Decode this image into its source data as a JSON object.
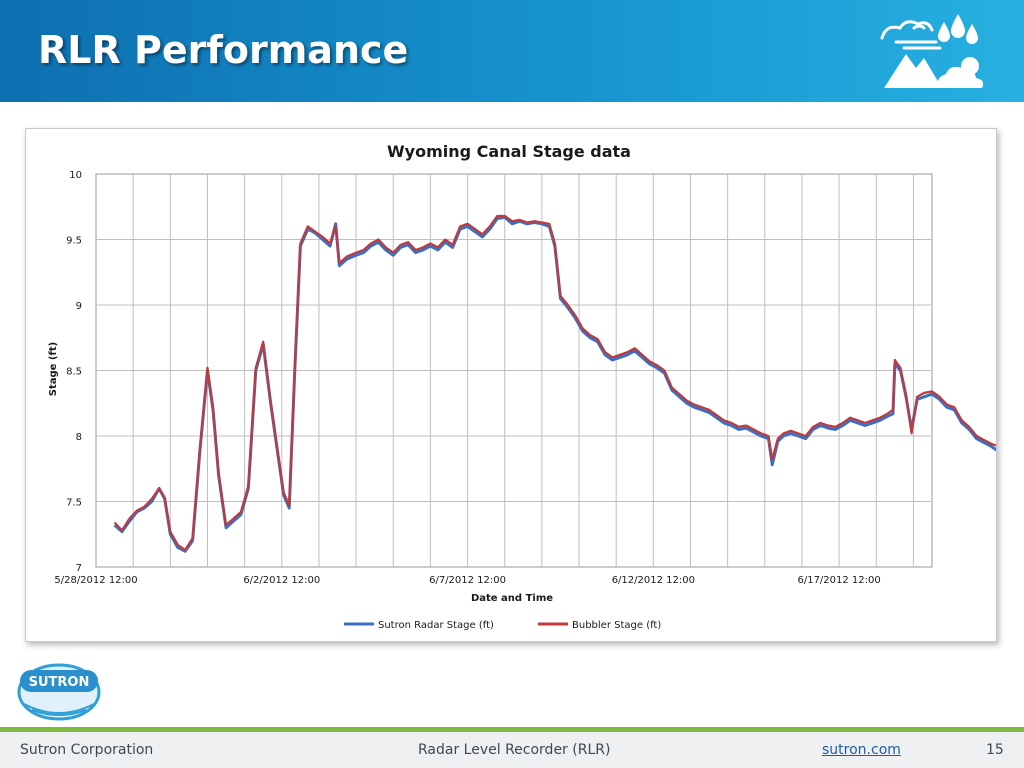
{
  "slide": {
    "title": "RLR Performance",
    "slide_number": "15"
  },
  "footer": {
    "company": "Sutron Corporation",
    "subject": "Radar Level Recorder (RLR)",
    "website": "sutron.com"
  },
  "logo": {
    "text": "SUTRON"
  },
  "icons": {
    "header": "weather-icon",
    "logo": "sutron-globe-logo"
  },
  "colors": {
    "header_start": "#0e6fb0",
    "header_end": "#27b0e0",
    "accent_green": "#7fba3f",
    "series_radar": "#3b6fc4",
    "series_bubbler": "#c0393b"
  },
  "chart_data": {
    "type": "line",
    "title": "Wyoming Canal Stage data",
    "xlabel": "Date and Time",
    "ylabel": "Stage (ft)",
    "ylim": [
      7,
      10
    ],
    "yticks": [
      "7",
      "7.5",
      "8",
      "8.5",
      "9",
      "9.5",
      "10"
    ],
    "xticks": [
      "5/28/2012 12:00",
      "6/2/2012 12:00",
      "6/7/2012 12:00",
      "6/12/2012 12:00",
      "6/17/2012 12:00"
    ],
    "xlim_days": [
      0,
      22.5
    ],
    "grid": true,
    "legend_position": "bottom",
    "series": [
      {
        "name": "Sutron Radar Stage (ft)",
        "color": "#3b6fc4",
        "points": [
          [
            0.5,
            7.32
          ],
          [
            0.7,
            7.27
          ],
          [
            0.9,
            7.35
          ],
          [
            1.1,
            7.42
          ],
          [
            1.3,
            7.45
          ],
          [
            1.5,
            7.5
          ],
          [
            1.7,
            7.6
          ],
          [
            1.85,
            7.52
          ],
          [
            2.0,
            7.25
          ],
          [
            2.2,
            7.15
          ],
          [
            2.4,
            7.12
          ],
          [
            2.6,
            7.2
          ],
          [
            2.8,
            7.9
          ],
          [
            3.0,
            8.5
          ],
          [
            3.15,
            8.2
          ],
          [
            3.3,
            7.7
          ],
          [
            3.5,
            7.3
          ],
          [
            3.7,
            7.35
          ],
          [
            3.9,
            7.4
          ],
          [
            4.1,
            7.6
          ],
          [
            4.3,
            8.5
          ],
          [
            4.5,
            8.7
          ],
          [
            4.7,
            8.25
          ],
          [
            4.9,
            7.85
          ],
          [
            5.05,
            7.55
          ],
          [
            5.2,
            7.45
          ],
          [
            5.35,
            8.5
          ],
          [
            5.5,
            9.45
          ],
          [
            5.7,
            9.58
          ],
          [
            5.9,
            9.55
          ],
          [
            6.1,
            9.5
          ],
          [
            6.3,
            9.45
          ],
          [
            6.45,
            9.62
          ],
          [
            6.55,
            9.3
          ],
          [
            6.75,
            9.35
          ],
          [
            7.0,
            9.38
          ],
          [
            7.2,
            9.4
          ],
          [
            7.4,
            9.45
          ],
          [
            7.6,
            9.48
          ],
          [
            7.8,
            9.42
          ],
          [
            8.0,
            9.38
          ],
          [
            8.2,
            9.44
          ],
          [
            8.4,
            9.46
          ],
          [
            8.6,
            9.4
          ],
          [
            8.8,
            9.42
          ],
          [
            9.0,
            9.45
          ],
          [
            9.2,
            9.42
          ],
          [
            9.4,
            9.48
          ],
          [
            9.6,
            9.44
          ],
          [
            9.8,
            9.58
          ],
          [
            10.0,
            9.6
          ],
          [
            10.2,
            9.56
          ],
          [
            10.4,
            9.52
          ],
          [
            10.6,
            9.58
          ],
          [
            10.8,
            9.66
          ],
          [
            11.0,
            9.67
          ],
          [
            11.2,
            9.62
          ],
          [
            11.4,
            9.64
          ],
          [
            11.6,
            9.62
          ],
          [
            11.8,
            9.63
          ],
          [
            12.0,
            9.62
          ],
          [
            12.2,
            9.6
          ],
          [
            12.35,
            9.45
          ],
          [
            12.5,
            9.05
          ],
          [
            12.7,
            8.98
          ],
          [
            12.9,
            8.9
          ],
          [
            13.1,
            8.8
          ],
          [
            13.3,
            8.75
          ],
          [
            13.5,
            8.72
          ],
          [
            13.7,
            8.62
          ],
          [
            13.9,
            8.58
          ],
          [
            14.1,
            8.6
          ],
          [
            14.3,
            8.62
          ],
          [
            14.5,
            8.65
          ],
          [
            14.7,
            8.6
          ],
          [
            14.9,
            8.55
          ],
          [
            15.1,
            8.52
          ],
          [
            15.3,
            8.48
          ],
          [
            15.5,
            8.35
          ],
          [
            15.7,
            8.3
          ],
          [
            15.9,
            8.25
          ],
          [
            16.1,
            8.22
          ],
          [
            16.3,
            8.2
          ],
          [
            16.5,
            8.18
          ],
          [
            16.7,
            8.14
          ],
          [
            16.9,
            8.1
          ],
          [
            17.1,
            8.08
          ],
          [
            17.3,
            8.05
          ],
          [
            17.5,
            8.06
          ],
          [
            17.7,
            8.03
          ],
          [
            17.9,
            8.0
          ],
          [
            18.1,
            7.98
          ],
          [
            18.2,
            7.78
          ],
          [
            18.35,
            7.96
          ],
          [
            18.5,
            8.0
          ],
          [
            18.7,
            8.02
          ],
          [
            18.9,
            8.0
          ],
          [
            19.1,
            7.98
          ],
          [
            19.3,
            8.05
          ],
          [
            19.5,
            8.08
          ],
          [
            19.7,
            8.06
          ],
          [
            19.9,
            8.05
          ],
          [
            20.1,
            8.08
          ],
          [
            20.3,
            8.12
          ],
          [
            20.5,
            8.1
          ],
          [
            20.7,
            8.08
          ],
          [
            20.9,
            8.1
          ],
          [
            21.1,
            8.12
          ],
          [
            21.3,
            8.15
          ],
          [
            21.45,
            8.17
          ],
          [
            21.5,
            8.55
          ],
          [
            21.65,
            8.5
          ],
          [
            21.8,
            8.3
          ],
          [
            21.95,
            8.05
          ],
          [
            22.1,
            8.28
          ],
          [
            22.3,
            8.3
          ],
          [
            22.5,
            8.32
          ],
          [
            22.7,
            8.28
          ],
          [
            22.9,
            8.22
          ],
          [
            23.1,
            8.2
          ],
          [
            23.3,
            8.1
          ],
          [
            23.5,
            8.05
          ],
          [
            23.7,
            7.98
          ],
          [
            23.9,
            7.95
          ],
          [
            24.1,
            7.92
          ],
          [
            24.3,
            7.88
          ]
        ]
      },
      {
        "name": "Bubbler Stage (ft)",
        "color": "#c0393b",
        "points": [
          [
            0.5,
            7.34
          ],
          [
            0.7,
            7.28
          ],
          [
            0.9,
            7.37
          ],
          [
            1.1,
            7.43
          ],
          [
            1.3,
            7.46
          ],
          [
            1.5,
            7.52
          ],
          [
            1.7,
            7.6
          ],
          [
            1.85,
            7.53
          ],
          [
            2.0,
            7.27
          ],
          [
            2.2,
            7.17
          ],
          [
            2.4,
            7.13
          ],
          [
            2.6,
            7.22
          ],
          [
            2.8,
            7.92
          ],
          [
            3.0,
            8.52
          ],
          [
            3.15,
            8.22
          ],
          [
            3.3,
            7.72
          ],
          [
            3.5,
            7.32
          ],
          [
            3.7,
            7.37
          ],
          [
            3.9,
            7.42
          ],
          [
            4.1,
            7.62
          ],
          [
            4.3,
            8.52
          ],
          [
            4.5,
            8.72
          ],
          [
            4.7,
            8.27
          ],
          [
            4.9,
            7.87
          ],
          [
            5.05,
            7.57
          ],
          [
            5.2,
            7.47
          ],
          [
            5.35,
            8.52
          ],
          [
            5.5,
            9.47
          ],
          [
            5.7,
            9.6
          ],
          [
            5.9,
            9.56
          ],
          [
            6.1,
            9.52
          ],
          [
            6.3,
            9.47
          ],
          [
            6.45,
            9.6
          ],
          [
            6.55,
            9.32
          ],
          [
            6.75,
            9.37
          ],
          [
            7.0,
            9.4
          ],
          [
            7.2,
            9.42
          ],
          [
            7.4,
            9.47
          ],
          [
            7.6,
            9.5
          ],
          [
            7.8,
            9.44
          ],
          [
            8.0,
            9.4
          ],
          [
            8.2,
            9.46
          ],
          [
            8.4,
            9.48
          ],
          [
            8.6,
            9.42
          ],
          [
            8.8,
            9.44
          ],
          [
            9.0,
            9.47
          ],
          [
            9.2,
            9.44
          ],
          [
            9.4,
            9.5
          ],
          [
            9.6,
            9.46
          ],
          [
            9.8,
            9.6
          ],
          [
            10.0,
            9.62
          ],
          [
            10.2,
            9.58
          ],
          [
            10.4,
            9.54
          ],
          [
            10.6,
            9.6
          ],
          [
            10.8,
            9.68
          ],
          [
            11.0,
            9.68
          ],
          [
            11.2,
            9.64
          ],
          [
            11.4,
            9.65
          ],
          [
            11.6,
            9.63
          ],
          [
            11.8,
            9.64
          ],
          [
            12.0,
            9.63
          ],
          [
            12.2,
            9.62
          ],
          [
            12.35,
            9.47
          ],
          [
            12.5,
            9.07
          ],
          [
            12.7,
            9.0
          ],
          [
            12.9,
            8.92
          ],
          [
            13.1,
            8.82
          ],
          [
            13.3,
            8.77
          ],
          [
            13.5,
            8.74
          ],
          [
            13.7,
            8.64
          ],
          [
            13.9,
            8.6
          ],
          [
            14.1,
            8.62
          ],
          [
            14.3,
            8.64
          ],
          [
            14.5,
            8.67
          ],
          [
            14.7,
            8.62
          ],
          [
            14.9,
            8.57
          ],
          [
            15.1,
            8.54
          ],
          [
            15.3,
            8.5
          ],
          [
            15.5,
            8.37
          ],
          [
            15.7,
            8.32
          ],
          [
            15.9,
            8.27
          ],
          [
            16.1,
            8.24
          ],
          [
            16.3,
            8.22
          ],
          [
            16.5,
            8.2
          ],
          [
            16.7,
            8.16
          ],
          [
            16.9,
            8.12
          ],
          [
            17.1,
            8.1
          ],
          [
            17.3,
            8.07
          ],
          [
            17.5,
            8.08
          ],
          [
            17.7,
            8.05
          ],
          [
            17.9,
            8.02
          ],
          [
            18.1,
            8.0
          ],
          [
            18.2,
            7.82
          ],
          [
            18.35,
            7.98
          ],
          [
            18.5,
            8.02
          ],
          [
            18.7,
            8.04
          ],
          [
            18.9,
            8.02
          ],
          [
            19.1,
            8.0
          ],
          [
            19.3,
            8.07
          ],
          [
            19.5,
            8.1
          ],
          [
            19.7,
            8.08
          ],
          [
            19.9,
            8.07
          ],
          [
            20.1,
            8.1
          ],
          [
            20.3,
            8.14
          ],
          [
            20.5,
            8.12
          ],
          [
            20.7,
            8.1
          ],
          [
            20.9,
            8.12
          ],
          [
            21.1,
            8.14
          ],
          [
            21.3,
            8.17
          ],
          [
            21.45,
            8.2
          ],
          [
            21.5,
            8.58
          ],
          [
            21.65,
            8.52
          ],
          [
            21.8,
            8.32
          ],
          [
            21.95,
            8.02
          ],
          [
            22.1,
            8.3
          ],
          [
            22.3,
            8.33
          ],
          [
            22.5,
            8.34
          ],
          [
            22.7,
            8.3
          ],
          [
            22.9,
            8.24
          ],
          [
            23.1,
            8.22
          ],
          [
            23.3,
            8.12
          ],
          [
            23.5,
            8.07
          ],
          [
            23.7,
            8.0
          ],
          [
            23.9,
            7.97
          ],
          [
            24.1,
            7.94
          ],
          [
            24.3,
            7.92
          ]
        ]
      }
    ]
  }
}
